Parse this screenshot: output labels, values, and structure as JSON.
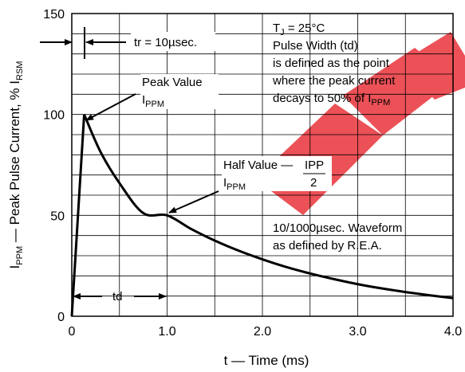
{
  "chart_data": {
    "type": "line",
    "xlabel": "t — Time (ms)",
    "ylabel": {
      "main": "I",
      "sub": "PPM",
      "rest": " — Peak Pulse Current, % I",
      "sub2": "RSM"
    },
    "xlim": [
      0,
      4.0
    ],
    "ylim": [
      0,
      150
    ],
    "x_tick_labels": [
      "0",
      "1.0",
      "2.0",
      "3.0",
      "4.0"
    ],
    "y_tick_labels": [
      "0",
      "50",
      "100",
      "150"
    ],
    "grid": true,
    "series": [
      {
        "x": [
          0,
          0.13,
          0.3,
          0.5,
          0.75,
          1.0,
          1.25,
          1.5,
          1.75,
          2.0,
          2.25,
          2.5,
          2.75,
          3.0,
          3.25,
          3.5,
          3.75,
          4.0
        ],
        "y": [
          0,
          100,
          81.6,
          66.0,
          51.1,
          50.0,
          43.3,
          37.5,
          32.5,
          28.2,
          24.4,
          21.2,
          18.4,
          15.9,
          13.8,
          12.0,
          10.4,
          9.0
        ]
      }
    ],
    "annotations": {
      "tr": "tr = 10µsec.",
      "tj_main": "T",
      "tj_sub": "J",
      "tj_rest": " = 25°C",
      "pulse_lines": [
        "Pulse Width (td)",
        "is defined as the point",
        "where the peak current"
      ],
      "decay_main": "decays to 50% of I",
      "decay_sub": "PPM",
      "peak_label": "Peak Value",
      "peak_i": "I",
      "peak_sub": "PPM",
      "half_label": "Half Value —",
      "half_num": "IPP",
      "half_den": "2",
      "half_i": "I",
      "half_sub": "PPM",
      "waveform_1": "10/1000µsec. Waveform",
      "waveform_2": "as defined by R.E.A.",
      "td": "td"
    }
  }
}
